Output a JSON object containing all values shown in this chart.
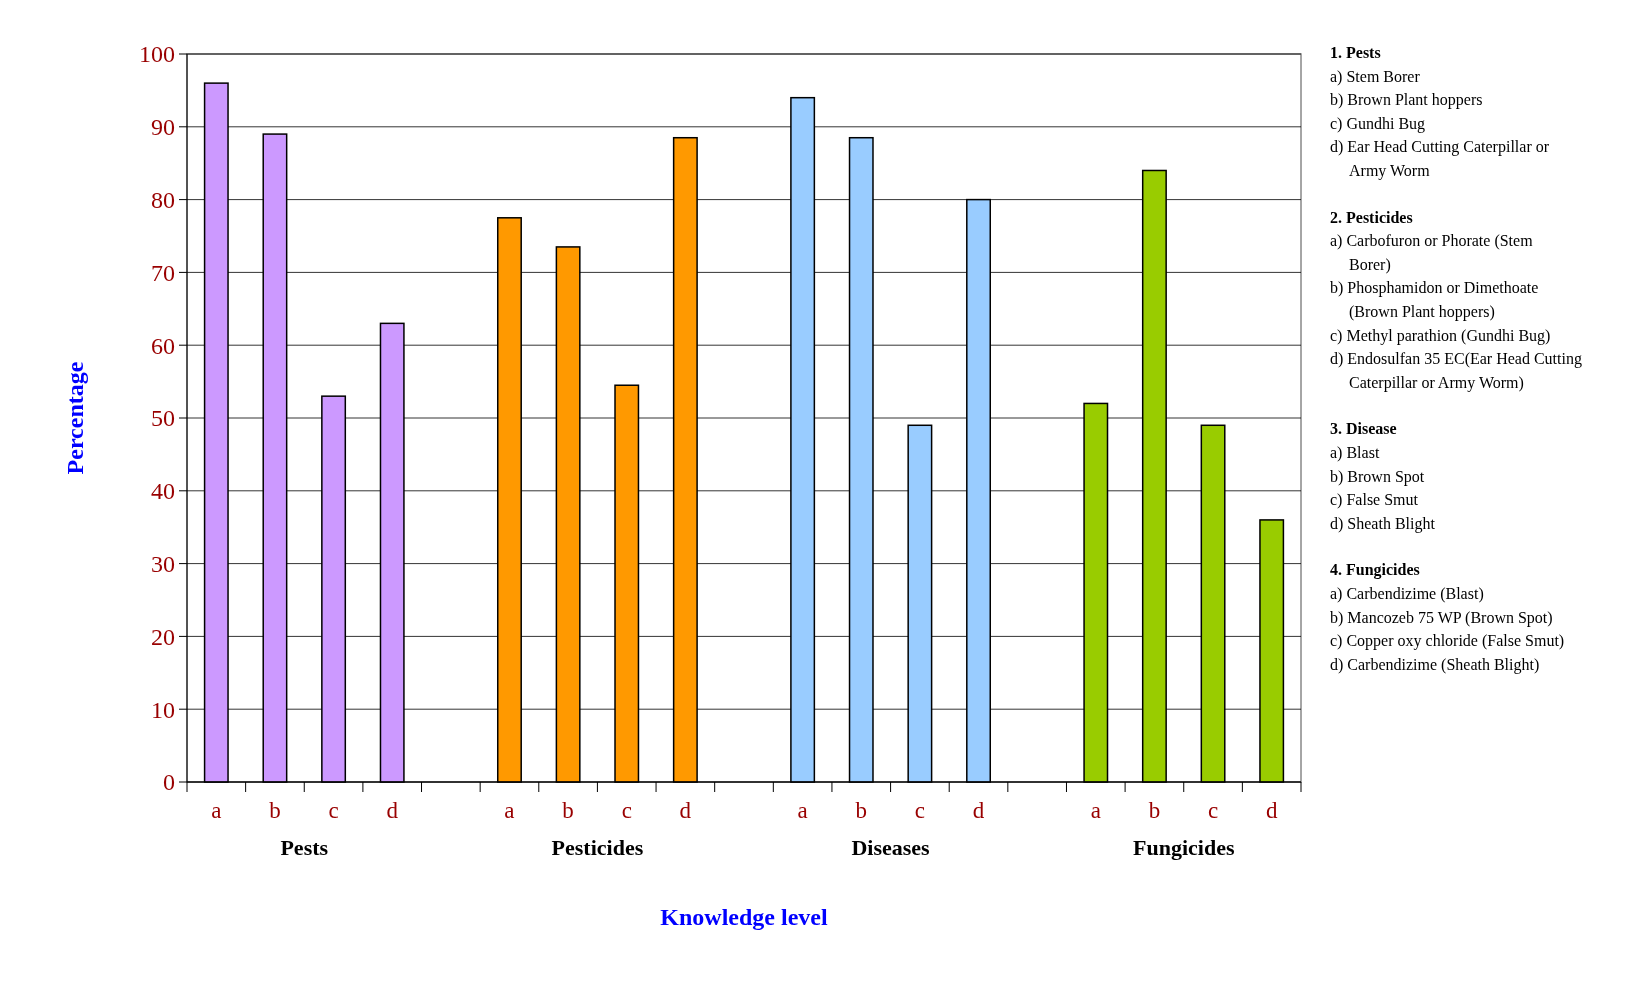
{
  "chart_data": {
    "type": "bar",
    "xlabel": "Knowledge level",
    "ylabel": "Percentage",
    "categories": [
      "a",
      "b",
      "c",
      "d",
      null,
      "a",
      "b",
      "c",
      "d",
      null,
      "a",
      "b",
      "c",
      "d",
      null,
      "a",
      "b",
      "c",
      "d"
    ],
    "values": [
      96,
      89,
      53,
      63,
      null,
      77.5,
      73.5,
      54.5,
      88.5,
      null,
      94,
      88.5,
      49,
      80,
      null,
      52,
      84,
      49,
      36
    ],
    "colors": [
      "#cc99ff",
      "#cc99ff",
      "#cc99ff",
      "#cc99ff",
      null,
      "#ff9900",
      "#ff9900",
      "#ff9900",
      "#ff9900",
      null,
      "#99ccff",
      "#99ccff",
      "#99ccff",
      "#99ccff",
      null,
      "#99cc00",
      "#99cc00",
      "#99cc00",
      "#99cc00"
    ],
    "ylim": [
      0,
      100
    ],
    "yticks": [
      0,
      10,
      20,
      30,
      40,
      50,
      60,
      70,
      80,
      90,
      100
    ],
    "grid": "y",
    "annotations": [
      "Pests",
      "Pesticides",
      "Diseases",
      "Fungicides",
      "1. Pests\na) Stem Borer\nb) Brown Plant hoppers\nc) Gundhi Bug\nd) Ear Head Cutting Caterpillar or Army Worm",
      "2. Pesticides\na) Carbofuron or Phorate (Stem Borer)\nb) Phosphamidon  or Dimethoate (Brown Plant hoppers)\nc) Methyl parathion  (Gundhi Bug)\nd) Endosulfan 35 EC(Ear Head Cutting Caterpillar or Army Worm)",
      "3. Disease\na) Blast\nb) Brown Spot\nc) False Smut\nd) Sheath Blight",
      "4. Fungicides\na)  Carbendizime (Blast)\nb)  Mancozeb 75 WP (Brown Spot)\nc)  Copper oxy chloride (False Smut)\nd)  Carbendizime (Sheath Blight)"
    ]
  }
}
